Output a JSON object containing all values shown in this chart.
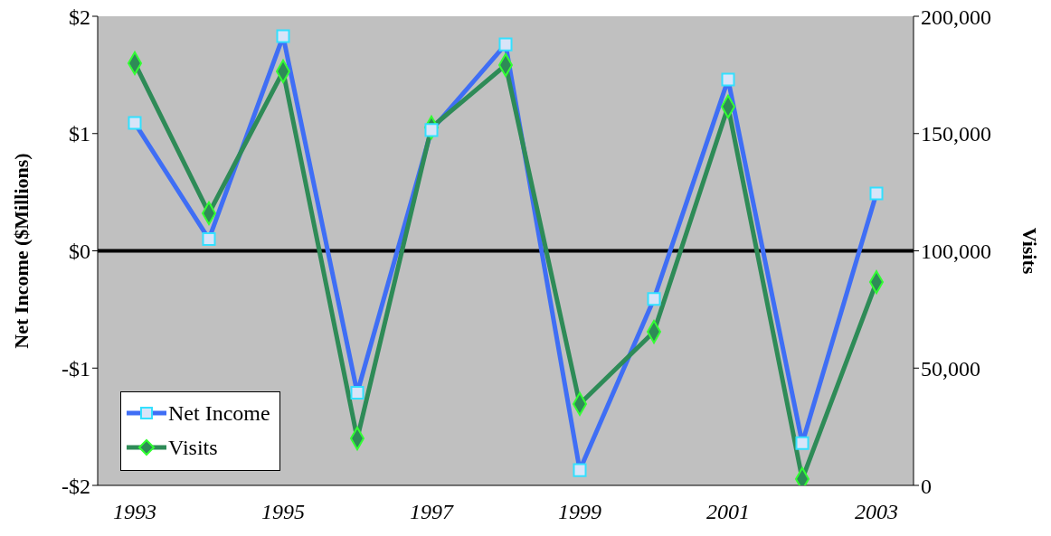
{
  "chart_data": {
    "type": "line",
    "ylabel": "Net Income ($Millions)",
    "y2label": "Visits",
    "categories": [
      "1993",
      null,
      "1995",
      null,
      "1997",
      null,
      "1999",
      null,
      "2001",
      null,
      "2003"
    ],
    "ylim": [
      -2,
      2
    ],
    "yticks": [
      {
        "value": -2,
        "label": "-$2"
      },
      {
        "value": -1,
        "label": "-$1"
      },
      {
        "value": 0,
        "label": "$0"
      },
      {
        "value": 1,
        "label": "$1"
      },
      {
        "value": 2,
        "label": "$2"
      }
    ],
    "y2lim": [
      0,
      200000
    ],
    "y2ticks": [
      {
        "value": 0,
        "label": "0"
      },
      {
        "value": 50000,
        "label": "50,000"
      },
      {
        "value": 100000,
        "label": "100,000"
      },
      {
        "value": 150000,
        "label": "150,000"
      },
      {
        "value": 200000,
        "label": "200,000"
      }
    ],
    "series": [
      {
        "name": "Net Income",
        "color": "#3f6ef5",
        "marker": "square",
        "values": [
          1.09,
          0.1,
          1.83,
          -1.21,
          1.03,
          1.76,
          -1.87,
          -0.41,
          1.46,
          -1.64,
          0.49
        ]
      },
      {
        "name": "Visits",
        "color": "#2e8b57",
        "marker": "diamond",
        "axis": "y2",
        "values": [
          180000,
          116000,
          176500,
          20000,
          152600,
          179200,
          34700,
          65500,
          161500,
          2700,
          86700
        ]
      }
    ],
    "ref_lines": [
      {
        "axis": "y",
        "value": 0,
        "color": "#000000"
      }
    ],
    "grid": false,
    "legend": "bottom left",
    "line_style": "solid"
  }
}
